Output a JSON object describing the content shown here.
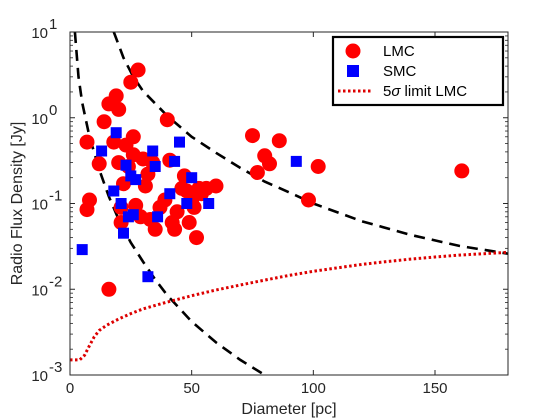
{
  "chart_data": {
    "type": "scatter",
    "xlabel": "Diameter [pc]",
    "ylabel": "Radio Flux Density [Jy]",
    "xlim": [
      0,
      180
    ],
    "ylim": [
      0.001,
      10
    ],
    "yscale": "log",
    "grid": false,
    "legend_position": "top-right",
    "x_ticks": [
      "0",
      "50",
      "100",
      "150"
    ],
    "x_tick_values": [
      0,
      50,
      100,
      150
    ],
    "y_ticks": [
      {
        "base": "10",
        "exp": "-3",
        "value": 0.001
      },
      {
        "base": "10",
        "exp": "-2",
        "value": 0.01
      },
      {
        "base": "10",
        "exp": "-1",
        "value": 0.1
      },
      {
        "base": "10",
        "exp": "0",
        "value": 1
      },
      {
        "base": "10",
        "exp": "1",
        "value": 10
      }
    ],
    "series": [
      {
        "name": "LMC",
        "marker": "circle",
        "color": "#ff0000",
        "points": [
          [
            7,
            0.52
          ],
          [
            8,
            0.11
          ],
          [
            7,
            0.085
          ],
          [
            12,
            0.29
          ],
          [
            14,
            0.9
          ],
          [
            16,
            1.45
          ],
          [
            16,
            0.01
          ],
          [
            18,
            0.52
          ],
          [
            19,
            1.8
          ],
          [
            20,
            0.3
          ],
          [
            20,
            1.25
          ],
          [
            21,
            0.09
          ],
          [
            21,
            0.06
          ],
          [
            22,
            0.17
          ],
          [
            23,
            0.48
          ],
          [
            24,
            0.27
          ],
          [
            25,
            2.6
          ],
          [
            26,
            0.6
          ],
          [
            26,
            0.37
          ],
          [
            27,
            0.095
          ],
          [
            28,
            3.6
          ],
          [
            29,
            0.07
          ],
          [
            30,
            0.33
          ],
          [
            31,
            0.16
          ],
          [
            32,
            0.22
          ],
          [
            33,
            0.065
          ],
          [
            34,
            0.3
          ],
          [
            35,
            0.05
          ],
          [
            37,
            0.09
          ],
          [
            39,
            0.11
          ],
          [
            40,
            0.95
          ],
          [
            41,
            0.32
          ],
          [
            42,
            0.06
          ],
          [
            43,
            0.05
          ],
          [
            44,
            0.08
          ],
          [
            46,
            0.15
          ],
          [
            47,
            0.21
          ],
          [
            48,
            0.14
          ],
          [
            49,
            0.06
          ],
          [
            50,
            0.11
          ],
          [
            51,
            0.09
          ],
          [
            52,
            0.04
          ],
          [
            53,
            0.15
          ],
          [
            54,
            0.13
          ],
          [
            56,
            0.15
          ],
          [
            60,
            0.16
          ],
          [
            75,
            0.62
          ],
          [
            77,
            0.23
          ],
          [
            80,
            0.36
          ],
          [
            82,
            0.29
          ],
          [
            86,
            0.54
          ],
          [
            98,
            0.11
          ],
          [
            102,
            0.27
          ],
          [
            161,
            0.24
          ]
        ]
      },
      {
        "name": "SMC",
        "marker": "square",
        "color": "#0000ff",
        "points": [
          [
            5,
            0.029
          ],
          [
            13,
            0.41
          ],
          [
            18,
            0.14
          ],
          [
            19,
            0.67
          ],
          [
            21,
            0.1
          ],
          [
            22,
            0.045
          ],
          [
            23,
            0.28
          ],
          [
            24,
            0.07
          ],
          [
            25,
            0.21
          ],
          [
            26,
            0.074
          ],
          [
            27,
            0.19
          ],
          [
            32,
            0.014
          ],
          [
            34,
            0.41
          ],
          [
            35,
            0.27
          ],
          [
            36,
            0.07
          ],
          [
            41,
            0.13
          ],
          [
            43,
            0.31
          ],
          [
            45,
            0.52
          ],
          [
            48,
            0.1
          ],
          [
            50,
            0.2
          ],
          [
            57,
            0.1
          ],
          [
            93,
            0.31
          ]
        ]
      },
      {
        "name": "5σ limit LMC",
        "name_parts": [
          "5",
          "σ",
          " limit LMC"
        ],
        "style": "dotted-line",
        "color": "#dd0000",
        "points": [
          [
            0,
            0.0015
          ],
          [
            4,
            0.0015
          ],
          [
            6,
            0.0017
          ],
          [
            8,
            0.0022
          ],
          [
            10,
            0.0028
          ],
          [
            12,
            0.0033
          ],
          [
            15,
            0.0038
          ],
          [
            20,
            0.0045
          ],
          [
            25,
            0.0052
          ],
          [
            30,
            0.0059
          ],
          [
            40,
            0.0071
          ],
          [
            50,
            0.0084
          ],
          [
            60,
            0.0098
          ],
          [
            70,
            0.0112
          ],
          [
            80,
            0.0128
          ],
          [
            90,
            0.0145
          ],
          [
            100,
            0.0162
          ],
          [
            110,
            0.0178
          ],
          [
            120,
            0.0195
          ],
          [
            130,
            0.021
          ],
          [
            140,
            0.0225
          ],
          [
            150,
            0.0238
          ],
          [
            160,
            0.025
          ],
          [
            170,
            0.026
          ],
          [
            180,
            0.027
          ]
        ]
      }
    ],
    "reference_curves": [
      {
        "style": "dashed",
        "color": "#000000",
        "points": [
          [
            2,
            10
          ],
          [
            3.5,
            3
          ],
          [
            5,
            1.5
          ],
          [
            8,
            0.6
          ],
          [
            12,
            0.25
          ],
          [
            16,
            0.12
          ],
          [
            20,
            0.065
          ],
          [
            25,
            0.035
          ],
          [
            30,
            0.021
          ],
          [
            35,
            0.013
          ],
          [
            40,
            0.0085
          ],
          [
            50,
            0.0042
          ],
          [
            60,
            0.0024
          ],
          [
            70,
            0.0015
          ],
          [
            80,
            0.001
          ]
        ]
      },
      {
        "style": "dashed",
        "color": "#000000",
        "points": [
          [
            18,
            10
          ],
          [
            22,
            5
          ],
          [
            26,
            3
          ],
          [
            30,
            2.05
          ],
          [
            40,
            1.05
          ],
          [
            50,
            0.6
          ],
          [
            60,
            0.39
          ],
          [
            70,
            0.26
          ],
          [
            80,
            0.18
          ],
          [
            90,
            0.135
          ],
          [
            100,
            0.1
          ],
          [
            120,
            0.062
          ],
          [
            140,
            0.043
          ],
          [
            160,
            0.032
          ],
          [
            180,
            0.026
          ]
        ]
      }
    ]
  }
}
